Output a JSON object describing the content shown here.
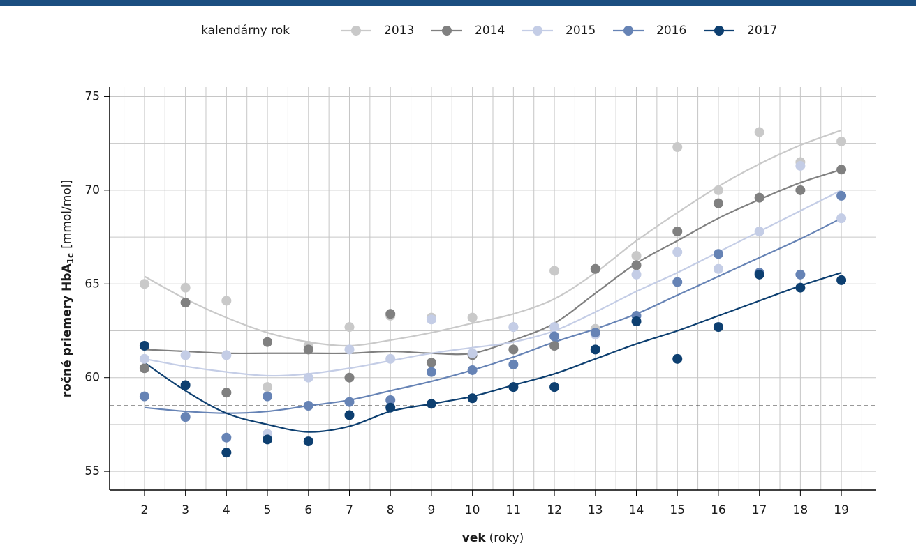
{
  "chart_data": {
    "type": "scatter",
    "legend_title": "kalendárny rok",
    "legend_position": "top",
    "ylabel_bold": "ročné priemery HbA",
    "ylabel_sub": "1c",
    "ylabel_unit": "[mmol/mol]",
    "xlabel_bold": "vek",
    "xlabel_unit": "(roky)",
    "x": [
      2,
      3,
      4,
      5,
      6,
      7,
      8,
      9,
      10,
      11,
      12,
      13,
      14,
      15,
      16,
      17,
      18,
      19
    ],
    "xlim": [
      1.15,
      19.85
    ],
    "xticks": [
      2,
      3,
      4,
      5,
      6,
      7,
      8,
      9,
      10,
      11,
      12,
      13,
      14,
      15,
      16,
      17,
      18,
      19
    ],
    "xgrid": [
      1.5,
      2,
      2.5,
      3,
      3.5,
      4,
      4.5,
      5,
      5.5,
      6,
      6.5,
      7,
      7.5,
      8,
      8.5,
      9,
      9.5,
      10,
      10.5,
      11,
      11.5,
      12,
      12.5,
      13,
      13.5,
      14,
      14.5,
      15,
      15.5,
      16,
      16.5,
      17,
      17.5,
      18,
      18.5,
      19,
      19.5
    ],
    "ylim": [
      54,
      75.5
    ],
    "yticks": [
      55,
      60,
      65,
      70,
      75
    ],
    "ygrid": [
      55,
      57.5,
      60,
      62.5,
      65,
      67.5,
      70,
      72.5,
      75
    ],
    "grid": true,
    "reference_line": 58.5,
    "series": [
      {
        "name": "2013",
        "color": "#c9c9c9",
        "values": [
          65.0,
          64.8,
          64.1,
          59.5,
          61.7,
          62.7,
          63.3,
          63.2,
          63.2,
          62.7,
          65.7,
          62.6,
          66.5,
          72.3,
          70.0,
          73.1,
          71.5,
          72.6
        ],
        "line_values": [
          65.4,
          64.2,
          63.2,
          62.4,
          61.9,
          61.7,
          62.0,
          62.4,
          62.9,
          63.4,
          64.2,
          65.6,
          67.3,
          68.8,
          70.2,
          71.4,
          72.4,
          73.2
        ]
      },
      {
        "name": "2014",
        "color": "#808080",
        "values": [
          60.5,
          64.0,
          59.2,
          61.9,
          61.5,
          60.0,
          63.4,
          60.8,
          61.2,
          61.5,
          61.7,
          65.8,
          66.0,
          67.8,
          69.3,
          69.6,
          70.0,
          71.1
        ],
        "line_values": [
          61.5,
          61.4,
          61.3,
          61.3,
          61.3,
          61.3,
          61.4,
          61.3,
          61.3,
          62.0,
          62.9,
          64.5,
          66.1,
          67.3,
          68.5,
          69.5,
          70.4,
          71.1
        ]
      },
      {
        "name": "2015",
        "color": "#c4cde6",
        "values": [
          61.0,
          61.2,
          61.2,
          57.0,
          60.0,
          61.5,
          61.0,
          63.1,
          61.3,
          62.7,
          62.7,
          62.3,
          65.5,
          66.7,
          65.8,
          67.8,
          71.3,
          68.5
        ],
        "line_values": [
          61.0,
          60.6,
          60.3,
          60.1,
          60.2,
          60.5,
          60.9,
          61.3,
          61.6,
          61.9,
          62.5,
          63.5,
          64.6,
          65.6,
          66.7,
          67.8,
          68.9,
          70.0
        ]
      },
      {
        "name": "2016",
        "color": "#6683b5",
        "values": [
          59.0,
          57.9,
          56.8,
          59.0,
          58.5,
          58.7,
          58.8,
          60.3,
          60.4,
          60.7,
          62.2,
          62.4,
          63.3,
          65.1,
          66.6,
          65.6,
          65.5,
          69.7
        ],
        "line_values": [
          58.4,
          58.2,
          58.1,
          58.2,
          58.5,
          58.8,
          59.3,
          59.8,
          60.4,
          61.1,
          61.9,
          62.6,
          63.4,
          64.4,
          65.4,
          66.4,
          67.4,
          68.5
        ]
      },
      {
        "name": "2017",
        "color": "#0d3f70",
        "values": [
          61.7,
          59.6,
          56.0,
          56.7,
          56.6,
          58.0,
          58.4,
          58.6,
          58.9,
          59.5,
          59.5,
          61.5,
          63.0,
          61.0,
          62.7,
          65.5,
          64.8,
          65.2
        ],
        "line_values": [
          60.8,
          59.3,
          58.1,
          57.5,
          57.1,
          57.4,
          58.2,
          58.6,
          59.0,
          59.6,
          60.2,
          61.0,
          61.8,
          62.5,
          63.3,
          64.1,
          64.9,
          65.6
        ]
      }
    ]
  }
}
